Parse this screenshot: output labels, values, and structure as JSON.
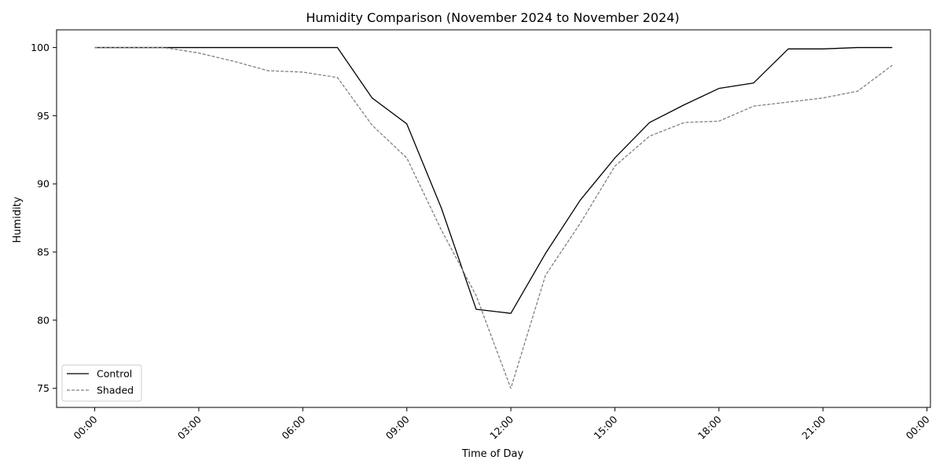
{
  "chart_data": {
    "type": "line",
    "title": "Humidity Comparison (November 2024 to November 2024)",
    "xlabel": "Time of Day",
    "ylabel": "Humidity",
    "x_hours": [
      0,
      1,
      2,
      3,
      4,
      5,
      6,
      7,
      8,
      9,
      10,
      11,
      12,
      13,
      14,
      15,
      16,
      17,
      18,
      19,
      20,
      21,
      22,
      23
    ],
    "xlim_hours": [
      -1.1,
      24.1
    ],
    "ylim": [
      73.6,
      101.3
    ],
    "x_ticks": [
      {
        "hour": 0,
        "label": "00:00"
      },
      {
        "hour": 3,
        "label": "03:00"
      },
      {
        "hour": 6,
        "label": "06:00"
      },
      {
        "hour": 9,
        "label": "09:00"
      },
      {
        "hour": 12,
        "label": "12:00"
      },
      {
        "hour": 15,
        "label": "15:00"
      },
      {
        "hour": 18,
        "label": "18:00"
      },
      {
        "hour": 21,
        "label": "21:00"
      },
      {
        "hour": 24,
        "label": "00:00"
      }
    ],
    "y_ticks": [
      75,
      80,
      85,
      90,
      95,
      100
    ],
    "grid": false,
    "legend_position": "bottom-left",
    "series": [
      {
        "name": "Control",
        "color": "#000000",
        "dash": "solid",
        "values": [
          100,
          100,
          100,
          100,
          100,
          100,
          100,
          100,
          96.3,
          94.4,
          88.2,
          80.8,
          80.5,
          84.9,
          88.8,
          91.9,
          94.5,
          95.8,
          97.0,
          97.4,
          99.9,
          99.9,
          100,
          100
        ]
      },
      {
        "name": "Shaded",
        "color": "#808080",
        "dash": "dashed",
        "values": [
          100,
          100,
          100,
          99.6,
          99.0,
          98.3,
          98.2,
          97.8,
          94.3,
          91.9,
          86.6,
          81.8,
          75.0,
          83.3,
          87.1,
          91.3,
          93.5,
          94.5,
          94.6,
          95.7,
          96.0,
          96.3,
          96.8,
          98.7
        ]
      }
    ]
  }
}
